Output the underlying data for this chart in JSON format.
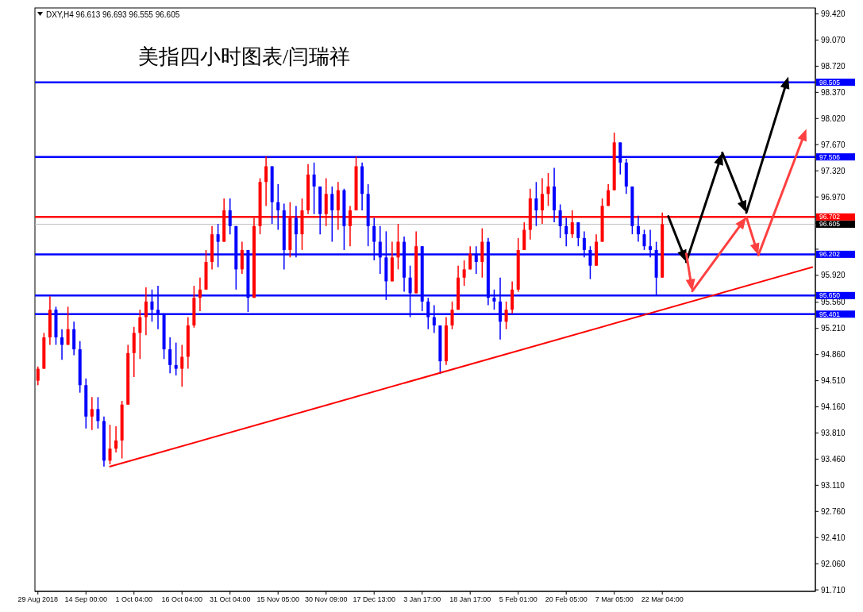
{
  "chart_data": {
    "type": "candlestick",
    "title": "美指四小时图表/闫瑞祥",
    "annotations": [
      "DXY,H4 96.613 96.693 96.555 96.605"
    ],
    "categories": [
      "29 Aug 2018",
      null,
      null,
      null,
      null,
      null,
      null,
      null,
      "14 Sep 00:00",
      null,
      null,
      null,
      null,
      null,
      null,
      null,
      "1 Oct 04:00",
      null,
      null,
      null,
      null,
      null,
      null,
      null,
      "16 Oct 04:00",
      null,
      null,
      null,
      null,
      null,
      null,
      null,
      "31 Oct 04:00",
      null,
      null,
      null,
      null,
      null,
      null,
      null,
      "15 Nov 05:00",
      null,
      null,
      null,
      null,
      null,
      null,
      null,
      "30 Nov 09:00",
      null,
      null,
      null,
      null,
      null,
      null,
      null,
      "17 Dec 13:00",
      null,
      null,
      null,
      null,
      null,
      null,
      null,
      "3 Jan 17:00",
      null,
      null,
      null,
      null,
      null,
      null,
      null,
      "18 Jan 17:00",
      null,
      null,
      null,
      null,
      null,
      null,
      null,
      "5 Feb 01:00",
      null,
      null,
      null,
      null,
      null,
      null,
      null,
      "20 Feb 05:00",
      null,
      null,
      null,
      null,
      null,
      null,
      null,
      "7 Mar 05:00",
      null,
      null,
      null,
      null,
      null,
      null,
      null,
      "22 Mar 04:00",
      null,
      null,
      null,
      null,
      null,
      null,
      null,
      null,
      null,
      null,
      null,
      null,
      null,
      null,
      null,
      null,
      null,
      null,
      null,
      null,
      null,
      null,
      null,
      null,
      null
    ],
    "ohlc": [
      [
        94.51,
        94.7,
        94.45,
        94.67
      ],
      [
        94.67,
        95.15,
        94.67,
        95.09
      ],
      [
        95.09,
        95.64,
        94.99,
        95.46
      ],
      [
        95.46,
        95.5,
        94.99,
        95.09
      ],
      [
        95.09,
        95.2,
        94.79,
        94.99
      ],
      [
        94.99,
        95.5,
        94.99,
        95.2
      ],
      [
        95.2,
        95.3,
        94.85,
        94.93
      ],
      [
        94.93,
        95.04,
        94.35,
        94.45
      ],
      [
        94.45,
        94.54,
        93.87,
        94.03
      ],
      [
        94.03,
        94.29,
        93.85,
        94.13
      ],
      [
        94.13,
        94.29,
        93.87,
        93.97
      ],
      [
        93.97,
        94.03,
        93.36,
        93.44
      ],
      [
        93.44,
        93.92,
        93.39,
        93.6
      ],
      [
        93.6,
        93.9,
        93.55,
        93.71
      ],
      [
        93.71,
        94.24,
        93.47,
        94.19
      ],
      [
        94.19,
        94.99,
        94.19,
        94.88
      ],
      [
        94.88,
        95.23,
        94.56,
        95.15
      ],
      [
        95.15,
        95.46,
        94.8,
        95.36
      ],
      [
        95.36,
        95.76,
        95.12,
        95.57
      ],
      [
        95.57,
        95.73,
        95.3,
        95.46
      ],
      [
        95.46,
        95.78,
        95.2,
        95.41
      ],
      [
        95.41,
        95.41,
        94.8,
        94.93
      ],
      [
        94.93,
        95.09,
        94.61,
        94.72
      ],
      [
        94.72,
        95.02,
        94.58,
        94.67
      ],
      [
        94.67,
        94.99,
        94.43,
        94.83
      ],
      [
        94.83,
        95.36,
        94.67,
        95.25
      ],
      [
        95.25,
        95.78,
        95.22,
        95.62
      ],
      [
        95.62,
        95.89,
        95.44,
        95.73
      ],
      [
        95.73,
        96.26,
        95.73,
        96.1
      ],
      [
        96.1,
        96.58,
        96.0,
        96.47
      ],
      [
        96.47,
        96.61,
        96.03,
        96.37
      ],
      [
        96.37,
        96.95,
        96.37,
        96.79
      ],
      [
        96.79,
        96.95,
        96.47,
        96.58
      ],
      [
        96.58,
        96.58,
        95.73,
        96.0
      ],
      [
        96.0,
        96.37,
        95.94,
        96.26
      ],
      [
        96.26,
        96.26,
        95.43,
        95.62
      ],
      [
        95.62,
        96.69,
        95.62,
        96.58
      ],
      [
        96.58,
        97.22,
        96.47,
        97.17
      ],
      [
        97.17,
        97.51,
        96.85,
        97.38
      ],
      [
        97.38,
        97.38,
        96.61,
        96.9
      ],
      [
        96.9,
        97.14,
        96.53,
        96.79
      ],
      [
        96.79,
        96.88,
        96.0,
        96.26
      ],
      [
        96.26,
        96.9,
        96.16,
        96.69
      ],
      [
        96.69,
        96.85,
        96.16,
        96.47
      ],
      [
        96.47,
        96.95,
        96.26,
        96.79
      ],
      [
        96.79,
        97.41,
        96.74,
        97.27
      ],
      [
        97.27,
        97.43,
        96.74,
        97.11
      ],
      [
        97.11,
        97.11,
        96.47,
        96.74
      ],
      [
        96.74,
        97.22,
        96.58,
        97.01
      ],
      [
        97.01,
        97.11,
        96.37,
        96.79
      ],
      [
        96.79,
        97.17,
        96.53,
        97.06
      ],
      [
        97.06,
        97.08,
        96.26,
        96.58
      ],
      [
        96.58,
        96.85,
        96.31,
        96.79
      ],
      [
        96.79,
        97.51,
        96.79,
        97.38
      ],
      [
        97.38,
        97.43,
        96.79,
        97.01
      ],
      [
        97.01,
        97.14,
        96.31,
        96.58
      ],
      [
        96.58,
        96.69,
        96.12,
        96.37
      ],
      [
        96.37,
        96.58,
        95.94,
        96.16
      ],
      [
        96.16,
        96.51,
        95.59,
        95.84
      ],
      [
        95.84,
        96.37,
        95.84,
        96.16
      ],
      [
        96.16,
        96.61,
        96.0,
        96.37
      ],
      [
        96.37,
        96.44,
        95.7,
        95.89
      ],
      [
        95.89,
        96.05,
        95.36,
        95.68
      ],
      [
        95.68,
        96.51,
        95.68,
        96.31
      ],
      [
        96.31,
        96.31,
        95.44,
        95.57
      ],
      [
        95.57,
        95.62,
        95.2,
        95.36
      ],
      [
        95.36,
        95.52,
        95.15,
        95.25
      ],
      [
        95.25,
        95.25,
        94.6,
        94.77
      ],
      [
        94.77,
        95.36,
        94.72,
        95.25
      ],
      [
        95.25,
        95.57,
        95.2,
        95.46
      ],
      [
        95.46,
        96.05,
        95.46,
        95.89
      ],
      [
        95.89,
        96.12,
        95.78,
        96.0
      ],
      [
        96.0,
        96.31,
        96.0,
        96.21
      ],
      [
        96.21,
        96.31,
        95.94,
        96.1
      ],
      [
        96.1,
        96.55,
        95.89,
        96.37
      ],
      [
        96.37,
        96.42,
        95.52,
        95.62
      ],
      [
        95.62,
        95.73,
        95.46,
        95.57
      ],
      [
        95.57,
        95.89,
        95.06,
        95.3
      ],
      [
        95.3,
        95.57,
        95.2,
        95.46
      ],
      [
        95.46,
        95.84,
        95.41,
        95.73
      ],
      [
        95.73,
        96.42,
        95.7,
        96.26
      ],
      [
        96.26,
        96.63,
        96.26,
        96.53
      ],
      [
        96.53,
        97.08,
        96.4,
        96.95
      ],
      [
        96.95,
        97.17,
        96.58,
        96.79
      ],
      [
        96.79,
        97.22,
        96.61,
        97.01
      ],
      [
        97.01,
        97.29,
        96.85,
        97.11
      ],
      [
        97.11,
        97.36,
        96.63,
        96.79
      ],
      [
        96.79,
        96.87,
        96.42,
        96.58
      ],
      [
        96.58,
        96.69,
        96.31,
        96.47
      ],
      [
        96.47,
        96.79,
        96.42,
        96.63
      ],
      [
        96.63,
        96.63,
        96.31,
        96.42
      ],
      [
        96.42,
        96.51,
        96.16,
        96.26
      ],
      [
        96.26,
        96.31,
        95.87,
        96.05
      ],
      [
        96.05,
        96.47,
        96.05,
        96.37
      ],
      [
        96.37,
        96.95,
        96.37,
        96.85
      ],
      [
        96.85,
        97.14,
        96.85,
        97.06
      ],
      [
        97.06,
        97.83,
        97.06,
        97.7
      ],
      [
        97.7,
        97.7,
        97.27,
        97.43
      ],
      [
        97.43,
        97.48,
        97.01,
        97.11
      ],
      [
        97.11,
        97.11,
        96.47,
        96.58
      ],
      [
        96.58,
        96.72,
        96.37,
        96.47
      ],
      [
        96.47,
        96.53,
        96.26,
        96.31
      ],
      [
        96.31,
        96.53,
        96.16,
        96.26
      ],
      [
        96.26,
        96.37,
        95.66,
        95.89
      ],
      [
        95.89,
        96.76,
        95.89,
        96.605
      ],
      null,
      null,
      null,
      null,
      null,
      null,
      null,
      null,
      null,
      null,
      null,
      null,
      null,
      null,
      null,
      null,
      null,
      null,
      null,
      null,
      null,
      null,
      null,
      null,
      null
    ],
    "colors": [
      "#ff0000",
      "#ff0000",
      "#ff0000",
      "#0000ff",
      "#0000ff",
      "#ff0000",
      "#0000ff",
      "#0000ff",
      "#0000ff",
      "#ff0000",
      "#0000ff",
      "#0000ff",
      "#ff0000",
      "#ff0000",
      "#ff0000",
      "#ff0000",
      "#ff0000",
      "#ff0000",
      "#ff0000",
      "#0000ff",
      "#0000ff",
      "#0000ff",
      "#0000ff",
      "#0000ff",
      "#ff0000",
      "#ff0000",
      "#ff0000",
      "#ff0000",
      "#ff0000",
      "#ff0000",
      "#0000ff",
      "#ff0000",
      "#0000ff",
      "#0000ff",
      "#ff0000",
      "#0000ff",
      "#ff0000",
      "#ff0000",
      "#ff0000",
      "#0000ff",
      "#0000ff",
      "#0000ff",
      "#ff0000",
      "#0000ff",
      "#ff0000",
      "#ff0000",
      "#0000ff",
      "#0000ff",
      "#ff0000",
      "#0000ff",
      "#ff0000",
      "#0000ff",
      "#ff0000",
      "#ff0000",
      "#0000ff",
      "#0000ff",
      "#0000ff",
      "#0000ff",
      "#0000ff",
      "#ff0000",
      "#ff0000",
      "#0000ff",
      "#0000ff",
      "#ff0000",
      "#0000ff",
      "#0000ff",
      "#0000ff",
      "#0000ff",
      "#ff0000",
      "#ff0000",
      "#ff0000",
      "#ff0000",
      "#ff0000",
      "#0000ff",
      "#ff0000",
      "#0000ff",
      "#0000ff",
      "#0000ff",
      "#ff0000",
      "#ff0000",
      "#ff0000",
      "#ff0000",
      "#ff0000",
      "#0000ff",
      "#ff0000",
      "#ff0000",
      "#0000ff",
      "#0000ff",
      "#0000ff",
      "#ff0000",
      "#0000ff",
      "#0000ff",
      "#0000ff",
      "#ff0000",
      "#ff0000",
      "#ff0000",
      "#ff0000",
      "#0000ff",
      "#0000ff",
      "#0000ff",
      "#0000ff",
      "#0000ff",
      "#0000ff",
      "#0000ff",
      "#ff0000",
      null,
      null,
      null,
      null,
      null,
      null,
      null,
      null,
      null,
      null,
      null,
      null,
      null,
      null,
      null,
      null,
      null,
      null,
      null,
      null,
      null,
      null,
      null,
      null,
      null
    ],
    "series": [
      {
        "type": "line",
        "color": "#ff0000",
        "values": [
          null,
          null,
          null,
          null,
          null,
          null,
          null,
          null,
          null,
          null,
          null,
          null,
          93.36,
          null,
          null,
          null,
          null,
          null,
          null,
          null,
          null,
          null,
          null,
          null,
          null,
          null,
          null,
          null,
          null,
          null,
          null,
          null,
          null,
          null,
          null,
          null,
          null,
          null,
          null,
          null,
          null,
          null,
          null,
          null,
          null,
          null,
          null,
          null,
          null,
          null,
          null,
          null,
          null,
          null,
          null,
          null,
          null,
          null,
          null,
          null,
          null,
          null,
          null,
          null,
          null,
          null,
          null,
          null,
          null,
          null,
          null,
          null,
          null,
          null,
          null,
          null,
          null,
          null,
          null,
          null,
          null,
          null,
          null,
          null,
          null,
          null,
          null,
          null,
          null,
          null,
          null,
          null,
          null,
          null,
          null,
          null,
          null,
          null,
          null,
          null,
          null,
          null,
          null,
          null,
          null,
          null,
          null,
          null,
          null,
          null,
          null,
          null,
          null,
          null,
          null,
          null,
          null,
          null,
          null,
          null,
          null,
          null,
          null,
          null,
          null,
          null,
          null,
          null,
          null,
          96.03
        ]
      }
    ],
    "ylim": [
      91.69,
      99.5
    ],
    "yticks": [
      {
        "value": 99.42,
        "label": "99.420"
      },
      {
        "value": 99.07,
        "label": "99.070"
      },
      {
        "value": 98.72,
        "label": "98.720"
      },
      {
        "value": 98.37,
        "label": "98.370"
      },
      {
        "value": 98.02,
        "label": "98.020"
      },
      {
        "value": 97.67,
        "label": "97.670"
      },
      {
        "value": 97.32,
        "label": "97.320"
      },
      {
        "value": 96.97,
        "label": "96.970"
      },
      {
        "value": 96.62,
        "label": null
      },
      {
        "value": 96.27,
        "label": null
      },
      {
        "value": 95.92,
        "label": "95.920"
      },
      {
        "value": 95.56,
        "label": "95.560"
      },
      {
        "value": 95.21,
        "label": "95.210"
      },
      {
        "value": 94.86,
        "label": "94.860"
      },
      {
        "value": 94.51,
        "label": "94.510"
      },
      {
        "value": 94.16,
        "label": "94.160"
      },
      {
        "value": 93.81,
        "label": "93.810"
      },
      {
        "value": 93.46,
        "label": "93.460"
      },
      {
        "value": 93.11,
        "label": "93.110"
      },
      {
        "value": 92.76,
        "label": "92.760"
      },
      {
        "value": 92.41,
        "label": "92.410"
      },
      {
        "value": 92.06,
        "label": "92.060"
      },
      {
        "value": 91.71,
        "label": "91.710"
      }
    ],
    "ref_lines": [
      {
        "axis": "y",
        "value": 98.505,
        "label": "98.505",
        "color": "#0000ff"
      },
      {
        "axis": "y",
        "value": 97.506,
        "label": "97.506",
        "color": "#0000ff"
      },
      {
        "axis": "y",
        "value": 96.702,
        "label": "96.702",
        "color": "#ff0000"
      },
      {
        "axis": "y",
        "value": 96.605,
        "label": "96.605",
        "color": "#c0c0c0"
      },
      {
        "axis": "y",
        "value": 96.202,
        "label": "96.202",
        "color": "#0000ff"
      },
      {
        "axis": "y",
        "value": 95.65,
        "label": "95.650",
        "color": "#0000ff"
      },
      {
        "axis": "y",
        "value": 95.401,
        "label": "95.401",
        "color": "#0000ff"
      }
    ]
  }
}
